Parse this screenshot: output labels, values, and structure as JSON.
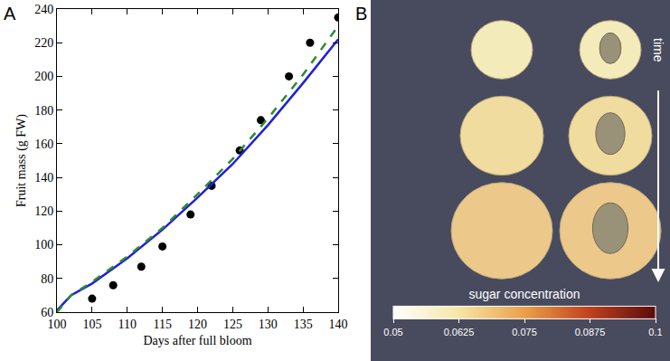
{
  "chart_data": [
    {
      "type": "line",
      "title": "A",
      "xlabel": "Days after full bloom",
      "ylabel": "Fruit mass (g FW)",
      "xlim": [
        100,
        140
      ],
      "xticks": [
        100,
        105,
        110,
        115,
        120,
        125,
        130,
        135,
        140
      ],
      "ylim": [
        60,
        240
      ],
      "yticks": [
        60,
        80,
        100,
        120,
        140,
        160,
        180,
        200,
        220,
        240
      ],
      "grid": false,
      "series": [
        {
          "type": "scatter",
          "marker": "circle",
          "color": "#000000",
          "x": [
            105,
            108,
            112,
            115,
            119,
            122,
            126,
            129,
            133,
            136,
            140
          ],
          "values": [
            68,
            76,
            87,
            99,
            118,
            135,
            156,
            174,
            200,
            220,
            235
          ]
        },
        {
          "type": "line",
          "line_style": "solid",
          "color": "#1f1fdc",
          "x": [
            100,
            102,
            105,
            110,
            115,
            120,
            125,
            130,
            135,
            140
          ],
          "values": [
            61,
            70,
            77,
            92,
            109,
            128,
            148,
            171,
            196,
            222
          ]
        },
        {
          "type": "line",
          "line_style": "dash",
          "color": "#2e8b2e",
          "x": [
            100,
            102,
            105,
            110,
            115,
            120,
            125,
            130,
            135,
            140
          ],
          "values": [
            60,
            70,
            78,
            93,
            110,
            130,
            151,
            175,
            201,
            230
          ]
        }
      ]
    },
    {
      "type": "colorbar",
      "title": "B",
      "xlabel": "sugar concentration",
      "xlim": [
        0.05,
        0.1
      ],
      "xticks": [
        0.05,
        0.0625,
        0.075,
        0.0875,
        0.1
      ],
      "colors": [
        "#ffffff",
        "#f6e6a6",
        "#eba04a",
        "#c0401c",
        "#5a0c0c"
      ],
      "annotations": [
        "time"
      ]
    }
  ]
}
